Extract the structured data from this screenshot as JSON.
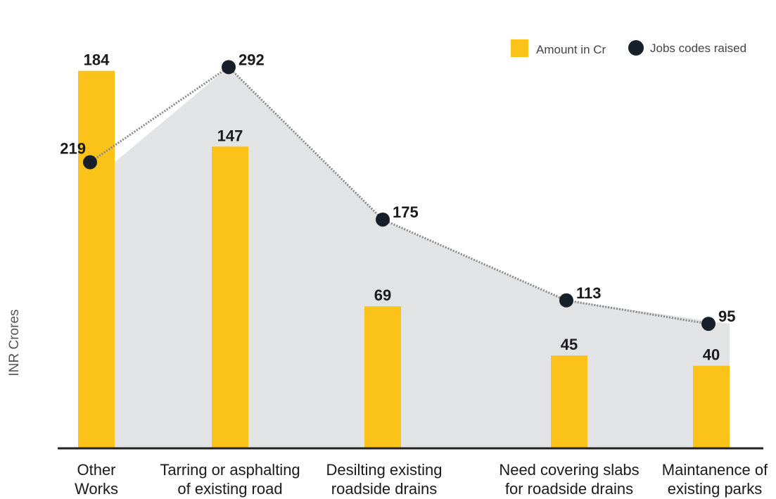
{
  "chart_data": {
    "type": "bar",
    "categories": [
      [
        "Other",
        "Works"
      ],
      [
        "Tarring or asphalting",
        "of existing road"
      ],
      [
        "Desilting existing",
        "roadside drains"
      ],
      [
        "Need covering slabs",
        "for roadside drains"
      ],
      [
        "Maintanence of",
        "existing parks"
      ]
    ],
    "series": [
      {
        "name": "Amount in Cr",
        "kind": "bar",
        "values": [
          184,
          147,
          69,
          45,
          40
        ]
      },
      {
        "name": "Jobs codes raised",
        "kind": "line",
        "values": [
          219,
          292,
          175,
          113,
          95
        ]
      }
    ],
    "ylabel": "INR Crores",
    "xlabel": "",
    "ylim": [
      0,
      210
    ],
    "jobs_ylim": [
      0,
      330
    ],
    "legend_position": "top-right",
    "grid": false
  },
  "colors": {
    "bar": "#FBC31A",
    "point": "#17202A",
    "area": "#E2E3E4",
    "line": "#888888",
    "axis": "#222222"
  }
}
